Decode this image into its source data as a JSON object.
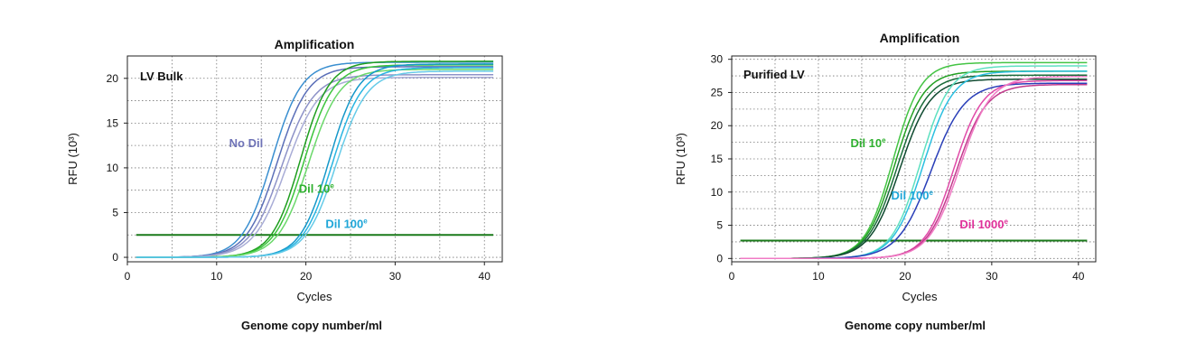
{
  "chart_data": [
    {
      "type": "line",
      "title": "Amplification",
      "xlabel": "Cycles",
      "ylabel": "RFU (10³)",
      "caption": "Genome copy number/ml",
      "panel_label": "LV Bulk",
      "xlim": [
        0,
        42
      ],
      "ylim": [
        -0.5,
        22.5
      ],
      "xticks": [
        0,
        10,
        20,
        30,
        40
      ],
      "yticks": [
        0,
        5,
        10,
        15,
        20
      ],
      "grid": true,
      "threshold": {
        "y": 2.5,
        "color": "#1a7a1a"
      },
      "x_start": 1,
      "x_end": 41,
      "series": [
        {
          "color": "#3a8fd0",
          "midpoint": 16.2,
          "slope": 0.6,
          "plateau": 21.8
        },
        {
          "color": "#5b6fb8",
          "midpoint": 16.8,
          "slope": 0.58,
          "plateau": 21.3
        },
        {
          "color": "#8d92c8",
          "midpoint": 17.3,
          "slope": 0.56,
          "plateau": 20.4
        },
        {
          "color": "#a8acd6",
          "midpoint": 17.8,
          "slope": 0.55,
          "plateau": 20.1
        },
        {
          "color": "#1f9e1f",
          "midpoint": 19.4,
          "slope": 0.62,
          "plateau": 21.9
        },
        {
          "color": "#3cc43c",
          "midpoint": 19.8,
          "slope": 0.6,
          "plateau": 21.5
        },
        {
          "color": "#6ad86a",
          "midpoint": 20.3,
          "slope": 0.58,
          "plateau": 21.0
        },
        {
          "color": "#1598c9",
          "midpoint": 22.6,
          "slope": 0.62,
          "plateau": 21.6
        },
        {
          "color": "#28b5e2",
          "midpoint": 23.0,
          "slope": 0.6,
          "plateau": 21.2
        },
        {
          "color": "#66cbe8",
          "midpoint": 23.4,
          "slope": 0.58,
          "plateau": 20.8
        }
      ],
      "annotations": [
        {
          "text": "No Dil",
          "sup": "",
          "x": 11.4,
          "y": 12.3,
          "color": "#6e72b6"
        },
        {
          "text": "Dil 10",
          "sup": "e",
          "x": 19.2,
          "y": 7.2,
          "color": "#2fb02f"
        },
        {
          "text": "Dil 100",
          "sup": "e",
          "x": 22.2,
          "y": 3.3,
          "color": "#1fa6d8"
        }
      ]
    },
    {
      "type": "line",
      "title": "Amplification",
      "xlabel": "Cycles",
      "ylabel": "RFU (10³)",
      "caption": "Genome copy number/ml",
      "panel_label": "Purified LV",
      "xlim": [
        0,
        42
      ],
      "ylim": [
        -0.5,
        30.5
      ],
      "xticks": [
        0,
        10,
        20,
        30,
        40
      ],
      "yticks": [
        0,
        5,
        10,
        15,
        20,
        25,
        30
      ],
      "grid": true,
      "threshold": {
        "y": 2.7,
        "color": "#1a7a1a"
      },
      "x_start": 1,
      "x_end": 41,
      "series": [
        {
          "color": "#44c444",
          "midpoint": 18.6,
          "slope": 0.62,
          "plateau": 29.5
        },
        {
          "color": "#22a022",
          "midpoint": 18.8,
          "slope": 0.6,
          "plateau": 28.2
        },
        {
          "color": "#1a6b3a",
          "midpoint": 19.1,
          "slope": 0.58,
          "plateau": 27.6
        },
        {
          "color": "#0f4a30",
          "midpoint": 19.4,
          "slope": 0.57,
          "plateau": 27.0
        },
        {
          "color": "#5ee0c0",
          "midpoint": 21.8,
          "slope": 0.6,
          "plateau": 29.0
        },
        {
          "color": "#2bbfe0",
          "midpoint": 22.1,
          "slope": 0.58,
          "plateau": 28.2
        },
        {
          "color": "#2a3fb8",
          "midpoint": 23.0,
          "slope": 0.52,
          "plateau": 26.4
        },
        {
          "color": "#e04aa8",
          "midpoint": 25.6,
          "slope": 0.6,
          "plateau": 26.8
        },
        {
          "color": "#c23a8c",
          "midpoint": 25.9,
          "slope": 0.58,
          "plateau": 26.2
        },
        {
          "color": "#f07ac4",
          "midpoint": 26.3,
          "slope": 0.56,
          "plateau": 27.4
        }
      ],
      "annotations": [
        {
          "text": "Dil 10",
          "sup": "e",
          "x": 13.7,
          "y": 16.8,
          "color": "#2fb02f"
        },
        {
          "text": "Dil 100",
          "sup": "e",
          "x": 18.4,
          "y": 8.9,
          "color": "#1fa6d8"
        },
        {
          "text": "Dil 1000",
          "sup": "e",
          "x": 26.3,
          "y": 4.5,
          "color": "#e0319a"
        }
      ]
    }
  ]
}
